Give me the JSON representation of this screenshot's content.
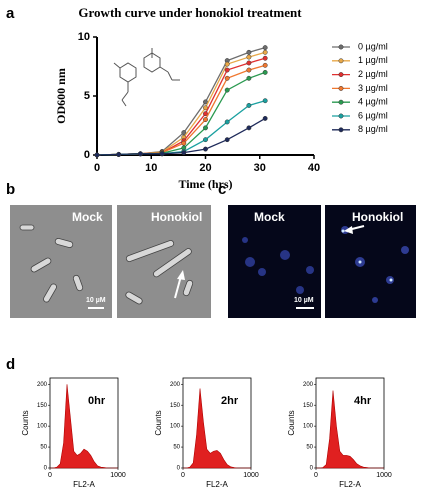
{
  "chart_data": [
    {
      "type": "line",
      "title": "Growth curve under honokiol treatment",
      "xlabel": "Time (hrs)",
      "ylabel": "OD600 nm",
      "x": [
        0,
        4,
        8,
        12,
        16,
        20,
        24,
        28,
        31
      ],
      "xlim": [
        0,
        40
      ],
      "xticks": [
        0,
        10,
        20,
        30,
        40
      ],
      "ylim": [
        0,
        10
      ],
      "yticks": [
        0,
        5,
        10
      ],
      "legend": "right",
      "series": [
        {
          "name": "0 µg/ml",
          "color": "#6d6d6d",
          "values": [
            0,
            0.05,
            0.1,
            0.3,
            1.9,
            4.5,
            8,
            8.7,
            9.1
          ]
        },
        {
          "name": "1 µg/ml",
          "color": "#e8a848",
          "values": [
            0,
            0.05,
            0.1,
            0.25,
            1.5,
            4,
            7.7,
            8.3,
            8.7
          ]
        },
        {
          "name": "2 µg/ml",
          "color": "#e03030",
          "values": [
            0,
            0.05,
            0.1,
            0.2,
            1.2,
            3.5,
            7.2,
            7.8,
            8.2
          ]
        },
        {
          "name": "3 µg/ml",
          "color": "#f07830",
          "values": [
            0,
            0.05,
            0.1,
            0.2,
            1,
            3,
            6.5,
            7.2,
            7.6
          ]
        },
        {
          "name": "4 µg/ml",
          "color": "#2a9a50",
          "values": [
            0,
            0.05,
            0.1,
            0.15,
            0.6,
            2.3,
            5.5,
            6.5,
            7
          ]
        },
        {
          "name": "6 µg/ml",
          "color": "#1aa0a0",
          "values": [
            0,
            0.05,
            0.1,
            0.1,
            0.3,
            1.3,
            2.8,
            4.2,
            4.6
          ]
        },
        {
          "name": "8 µg/ml",
          "color": "#1e2a5a",
          "values": [
            0,
            0.05,
            0.1,
            0.1,
            0.2,
            0.5,
            1.3,
            2.3,
            3.1
          ]
        }
      ]
    },
    {
      "type": "area",
      "title": "0hr",
      "xlabel": "FL2-A",
      "ylabel": "Counts",
      "color": "#e02020",
      "x": [
        0,
        50,
        100,
        150,
        200,
        250,
        300,
        350,
        400,
        450,
        500,
        550,
        600,
        650,
        700,
        750,
        800,
        850,
        900,
        950,
        1000
      ],
      "values": [
        0,
        0,
        2,
        10,
        60,
        200,
        120,
        40,
        30,
        35,
        45,
        40,
        30,
        15,
        5,
        2,
        1,
        0,
        0,
        0,
        0
      ],
      "xlim": [
        0,
        1000
      ],
      "xticks": [
        0,
        1000
      ],
      "ylim": [
        0,
        215
      ],
      "yticks": [
        0,
        50,
        100,
        150,
        200
      ]
    },
    {
      "type": "area",
      "title": "2hr",
      "xlabel": "FL2-A",
      "ylabel": "Counts",
      "color": "#e02020",
      "x": [
        0,
        50,
        100,
        150,
        200,
        250,
        300,
        350,
        400,
        450,
        500,
        550,
        600,
        650,
        700,
        750,
        800,
        850,
        900,
        950,
        1000
      ],
      "values": [
        0,
        0,
        2,
        12,
        80,
        190,
        110,
        45,
        35,
        40,
        42,
        35,
        20,
        8,
        3,
        1,
        0,
        0,
        0,
        0,
        0
      ],
      "xlim": [
        0,
        1000
      ],
      "xticks": [
        0,
        1000
      ],
      "ylim": [
        0,
        215
      ],
      "yticks": [
        0,
        50,
        100,
        150,
        200
      ]
    },
    {
      "type": "area",
      "title": "4hr",
      "xlabel": "FL2-A",
      "ylabel": "Counts",
      "color": "#e02020",
      "x": [
        0,
        50,
        100,
        150,
        200,
        250,
        300,
        350,
        400,
        450,
        500,
        550,
        600,
        650,
        700,
        750,
        800,
        850,
        900,
        950,
        1000
      ],
      "values": [
        0,
        0,
        1,
        8,
        70,
        185,
        100,
        40,
        30,
        30,
        28,
        20,
        10,
        5,
        2,
        1,
        0,
        0,
        0,
        0,
        0
      ],
      "xlim": [
        0,
        1000
      ],
      "xticks": [
        0,
        1000
      ],
      "ylim": [
        0,
        215
      ],
      "yticks": [
        0,
        50,
        100,
        150,
        200
      ]
    }
  ],
  "panel_labels": [
    "a",
    "b",
    "c",
    "d"
  ],
  "micrographs": [
    {
      "left": "Mock",
      "right": "Honokiol",
      "scale": "10 µM"
    },
    {
      "left": "Mock",
      "right": "Honokiol",
      "scale": "10 µM"
    }
  ]
}
